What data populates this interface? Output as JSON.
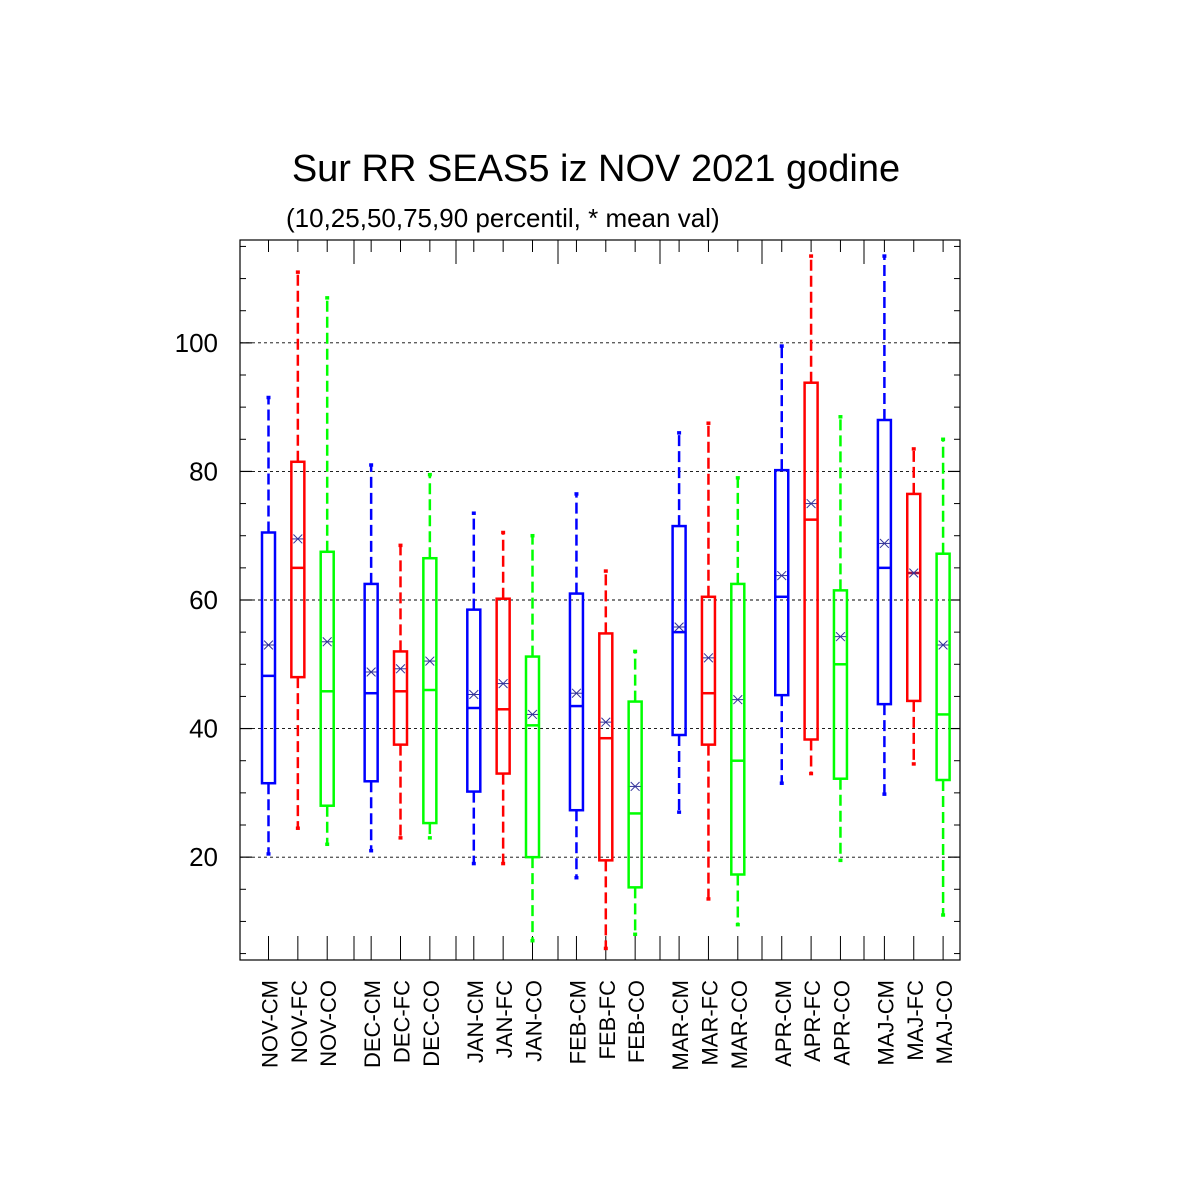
{
  "chart_data": {
    "type": "boxplot",
    "title": "Sur RR SEAS5 iz NOV 2021 godine",
    "subtitle": "(10,25,50,75,90 percentil, * mean val)",
    "ylim": [
      4,
      116
    ],
    "yticks": [
      20,
      40,
      60,
      80,
      100
    ],
    "grid_y": true,
    "colors": {
      "CM": "#0000ff",
      "FC": "#ff0000",
      "CO": "#00ff00",
      "mean_marker": "#333399"
    },
    "boxes": [
      {
        "label": "NOV-CM",
        "kind": "CM",
        "p10": 20.5,
        "p25": 31.5,
        "p50": 48.2,
        "p75": 70.5,
        "p90": 91.5,
        "mean": 53.0
      },
      {
        "label": "NOV-FC",
        "kind": "FC",
        "p10": 24.5,
        "p25": 48.0,
        "p50": 65.0,
        "p75": 81.5,
        "p90": 111.0,
        "mean": 69.5
      },
      {
        "label": "NOV-CO",
        "kind": "CO",
        "p10": 22.0,
        "p25": 28.0,
        "p50": 45.8,
        "p75": 67.5,
        "p90": 107.0,
        "mean": 53.5
      },
      {
        "label": "DEC-CM",
        "kind": "CM",
        "p10": 21.0,
        "p25": 31.8,
        "p50": 45.5,
        "p75": 62.5,
        "p90": 81.0,
        "mean": 48.8
      },
      {
        "label": "DEC-FC",
        "kind": "FC",
        "p10": 23.0,
        "p25": 37.5,
        "p50": 45.8,
        "p75": 52.0,
        "p90": 68.5,
        "mean": 49.3
      },
      {
        "label": "DEC-CO",
        "kind": "CO",
        "p10": 23.0,
        "p25": 25.3,
        "p50": 46.0,
        "p75": 66.5,
        "p90": 79.5,
        "mean": 50.5
      },
      {
        "label": "JAN-CM",
        "kind": "CM",
        "p10": 19.0,
        "p25": 30.2,
        "p50": 43.2,
        "p75": 58.5,
        "p90": 73.5,
        "mean": 45.3
      },
      {
        "label": "JAN-FC",
        "kind": "FC",
        "p10": 19.0,
        "p25": 33.0,
        "p50": 43.0,
        "p75": 60.2,
        "p90": 70.5,
        "mean": 47.0
      },
      {
        "label": "JAN-CO",
        "kind": "CO",
        "p10": 7.0,
        "p25": 20.0,
        "p50": 40.5,
        "p75": 51.2,
        "p90": 70.0,
        "mean": 42.2
      },
      {
        "label": "FEB-CM",
        "kind": "CM",
        "p10": 16.8,
        "p25": 27.3,
        "p50": 43.5,
        "p75": 61.0,
        "p90": 76.5,
        "mean": 45.5
      },
      {
        "label": "FEB-FC",
        "kind": "FC",
        "p10": 5.8,
        "p25": 19.5,
        "p50": 38.5,
        "p75": 54.8,
        "p90": 64.5,
        "mean": 41.0
      },
      {
        "label": "FEB-CO",
        "kind": "CO",
        "p10": 8.0,
        "p25": 15.3,
        "p50": 26.8,
        "p75": 44.2,
        "p90": 52.0,
        "mean": 31.0
      },
      {
        "label": "MAR-CM",
        "kind": "CM",
        "p10": 27.0,
        "p25": 39.0,
        "p50": 55.0,
        "p75": 71.5,
        "p90": 86.0,
        "mean": 55.8
      },
      {
        "label": "MAR-FC",
        "kind": "FC",
        "p10": 13.5,
        "p25": 37.5,
        "p50": 45.5,
        "p75": 60.5,
        "p90": 87.5,
        "mean": 51.0
      },
      {
        "label": "MAR-CO",
        "kind": "CO",
        "p10": 9.5,
        "p25": 17.3,
        "p50": 35.0,
        "p75": 62.5,
        "p90": 79.0,
        "mean": 44.5
      },
      {
        "label": "APR-CM",
        "kind": "CM",
        "p10": 31.5,
        "p25": 45.2,
        "p50": 60.5,
        "p75": 80.2,
        "p90": 99.5,
        "mean": 63.8
      },
      {
        "label": "APR-FC",
        "kind": "FC",
        "p10": 33.0,
        "p25": 38.3,
        "p50": 72.5,
        "p75": 93.8,
        "p90": 113.5,
        "mean": 75.0
      },
      {
        "label": "APR-CO",
        "kind": "CO",
        "p10": 19.5,
        "p25": 32.2,
        "p50": 50.0,
        "p75": 61.5,
        "p90": 88.5,
        "mean": 54.3
      },
      {
        "label": "MAJ-CM",
        "kind": "CM",
        "p10": 29.8,
        "p25": 43.8,
        "p50": 65.0,
        "p75": 88.0,
        "p90": 113.5,
        "mean": 68.8
      },
      {
        "label": "MAJ-FC",
        "kind": "FC",
        "p10": 34.5,
        "p25": 44.3,
        "p50": 64.2,
        "p75": 76.5,
        "p90": 83.5,
        "mean": 64.2
      },
      {
        "label": "MAJ-CO",
        "kind": "CO",
        "p10": 11.0,
        "p25": 32.0,
        "p50": 42.2,
        "p75": 67.2,
        "p90": 85.0,
        "mean": 53.0
      }
    ]
  }
}
